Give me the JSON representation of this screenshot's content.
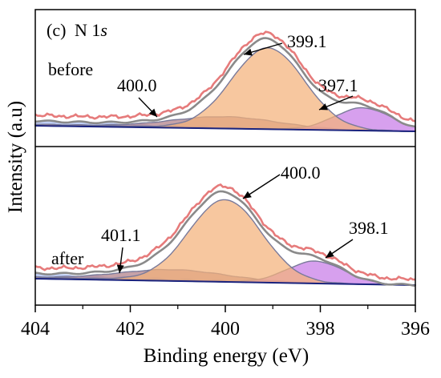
{
  "chart_data": {
    "type": "area",
    "panel_label": "(c)",
    "title_element": "N 1",
    "title_orbital": "s",
    "xlabel": "Binding energy (eV)",
    "ylabel": "Intensity (a.u)",
    "xlim": [
      404,
      396
    ],
    "x_reversed": true,
    "x_ticks": [
      404,
      402,
      400,
      398,
      396
    ],
    "x_tick_labels": [
      "404",
      "402",
      "400",
      "398",
      "396"
    ],
    "y_ticks_shown": false,
    "grid": false,
    "component_colors": {
      "peak_main": "#f4b27a",
      "peak_low": "#c77ce8",
      "peak_high_be": "#b07e86",
      "envelope": "#e05a5a",
      "fit": "#8a8a8a",
      "baseline": "#1a237e",
      "background_fill": "#8eaaf0"
    },
    "panels": [
      {
        "name": "before",
        "label": "before",
        "peaks": [
          {
            "center": 399.1,
            "label": "399.1",
            "height": 1.0,
            "fwhm": 1.8,
            "color_key": "peak_main"
          },
          {
            "center": 397.1,
            "label": "397.1",
            "height": 0.28,
            "fwhm": 1.4,
            "color_key": "peak_low"
          },
          {
            "center": 400.0,
            "label": "400.0",
            "height": 0.14,
            "fwhm": 2.6,
            "color_key": "peak_high_be"
          }
        ]
      },
      {
        "name": "after",
        "label": "after",
        "peaks": [
          {
            "center": 400.0,
            "label": "400.0",
            "height": 1.0,
            "fwhm": 1.8,
            "color_key": "peak_main"
          },
          {
            "center": 398.1,
            "label": "398.1",
            "height": 0.27,
            "fwhm": 1.4,
            "color_key": "peak_low"
          },
          {
            "center": 401.1,
            "label": "401.1",
            "height": 0.13,
            "fwhm": 2.6,
            "color_key": "peak_high_be"
          }
        ]
      }
    ]
  }
}
